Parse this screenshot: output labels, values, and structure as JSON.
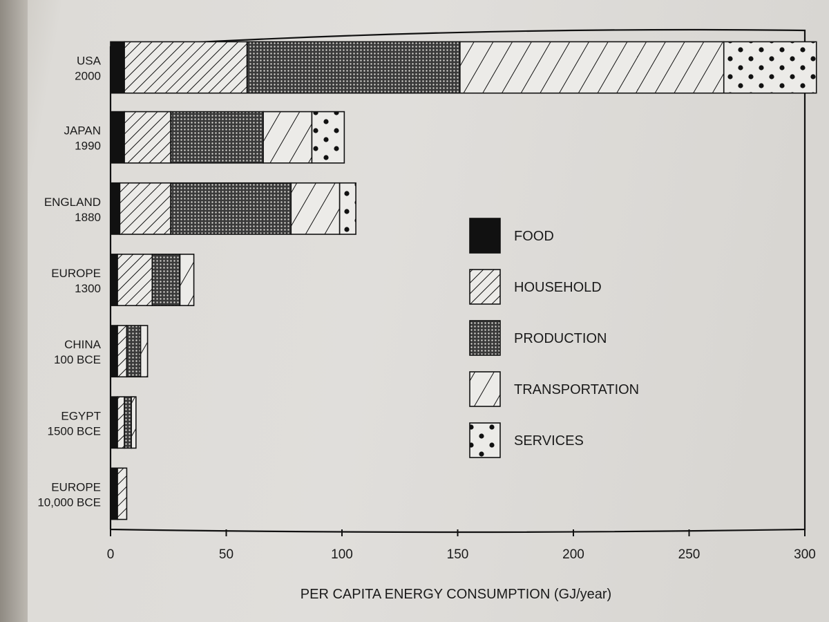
{
  "chart_data": {
    "type": "bar",
    "orientation": "horizontal",
    "stacked": true,
    "categories": [
      [
        "USA",
        "2000"
      ],
      [
        "JAPAN",
        "1990"
      ],
      [
        "ENGLAND",
        "1880"
      ],
      [
        "EUROPE",
        "1300"
      ],
      [
        "CHINA",
        "100 BCE"
      ],
      [
        "EGYPT",
        "1500 BCE"
      ],
      [
        "EUROPE",
        "10,000 BCE"
      ]
    ],
    "series": [
      {
        "name": "FOOD",
        "pattern": "solid",
        "values": [
          6,
          6,
          4,
          3,
          3,
          3,
          3
        ]
      },
      {
        "name": "HOUSEHOLD",
        "pattern": "diagonal-dense",
        "values": [
          53,
          20,
          22,
          15,
          4,
          3,
          4
        ]
      },
      {
        "name": "PRODUCTION",
        "pattern": "crosshatch",
        "values": [
          92,
          40,
          52,
          12,
          6,
          3,
          0
        ]
      },
      {
        "name": "TRANSPORTATION",
        "pattern": "diagonal-sparse",
        "values": [
          114,
          21,
          21,
          6,
          3,
          2,
          0
        ]
      },
      {
        "name": "SERVICES",
        "pattern": "dots",
        "values": [
          40,
          14,
          7,
          0,
          0,
          0,
          0
        ]
      }
    ],
    "xlabel": "PER CAPITA ENERGY CONSUMPTION (GJ/year)",
    "ylabel": "",
    "xlim": [
      0,
      300
    ],
    "xticks": [
      0,
      50,
      100,
      150,
      200,
      250,
      300
    ],
    "legend_position": "right",
    "grid": false
  },
  "colors": {
    "ink": "#111111",
    "fill_light": "#ecebe8"
  }
}
